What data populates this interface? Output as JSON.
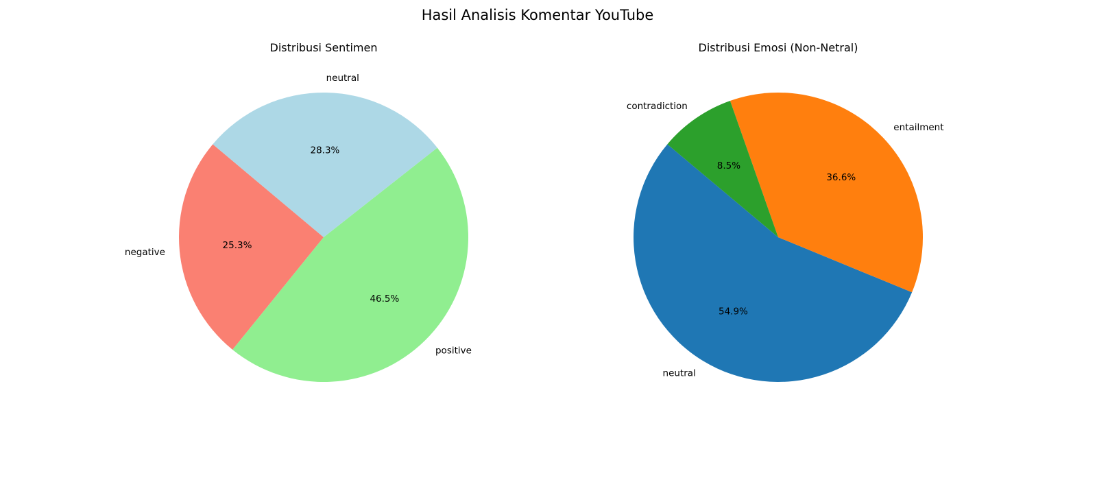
{
  "figure": {
    "title": "Hasil Analisis Komentar YouTube"
  },
  "chart_data": [
    {
      "type": "pie",
      "title": "Distribusi Sentimen",
      "start_angle": 140,
      "direction": "counterclockwise",
      "slices": [
        {
          "label": "negative",
          "value": 25.3,
          "pct_text": "25.3%",
          "color": "#FA8072"
        },
        {
          "label": "positive",
          "value": 46.5,
          "pct_text": "46.5%",
          "color": "#90EE90"
        },
        {
          "label": "neutral",
          "value": 28.3,
          "pct_text": "28.3%",
          "color": "#ADD8E6"
        }
      ]
    },
    {
      "type": "pie",
      "title": "Distribusi Emosi (Non-Netral)",
      "start_angle": 140,
      "direction": "counterclockwise",
      "slices": [
        {
          "label": "neutral",
          "value": 54.9,
          "pct_text": "54.9%",
          "color": "#1F77B4"
        },
        {
          "label": "entailment",
          "value": 36.6,
          "pct_text": "36.6%",
          "color": "#FF7F0E"
        },
        {
          "label": "contradiction",
          "value": 8.5,
          "pct_text": "8.5%",
          "color": "#2CA02C"
        }
      ]
    }
  ]
}
